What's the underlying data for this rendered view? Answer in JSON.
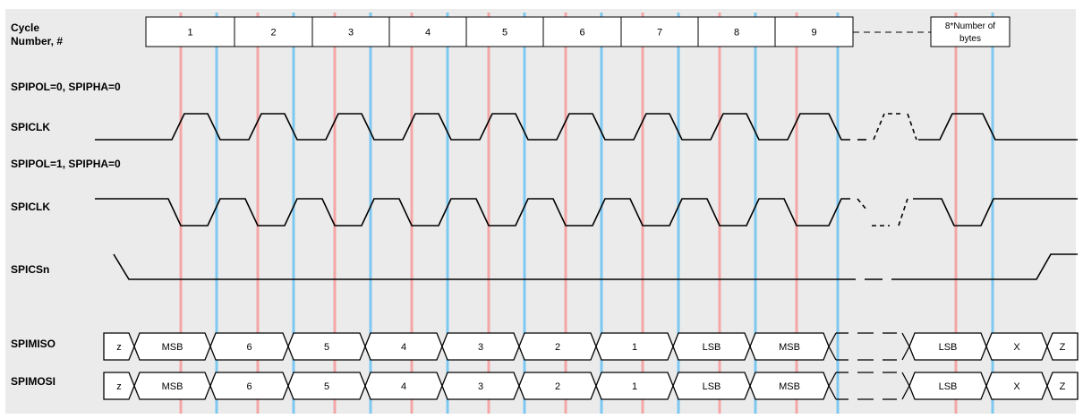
{
  "labels": {
    "cycle_line1": "Cycle",
    "cycle_line2": "Number, #",
    "mode0": "SPIPOL=0, SPIPHA=0",
    "clk0": "SPICLK",
    "mode1": "SPIPOL=1, SPIPHA=0",
    "clk1": "SPICLK",
    "cs": "SPICSn",
    "miso": "SPIMISO",
    "mosi": "SPIMOSI"
  },
  "cycle_numbers": [
    "1",
    "2",
    "3",
    "4",
    "5",
    "6",
    "7",
    "8",
    "9"
  ],
  "last_cycle_line1": "8*Number of",
  "last_cycle_line2": "bytes",
  "miso_values": [
    "z",
    "MSB",
    "6",
    "5",
    "4",
    "3",
    "2",
    "1",
    "LSB",
    "MSB",
    "LSB",
    "X",
    "Z"
  ],
  "mosi_values": [
    "z",
    "MSB",
    "6",
    "5",
    "4",
    "3",
    "2",
    "1",
    "LSB",
    "MSB",
    "LSB",
    "X",
    "Z"
  ],
  "colors": {
    "panel_bg": "#ebebeb",
    "red_marker": "#f4a6a6",
    "blue_marker": "#7dc8f0",
    "line": "#000000",
    "cell_bg": "#ffffff"
  }
}
